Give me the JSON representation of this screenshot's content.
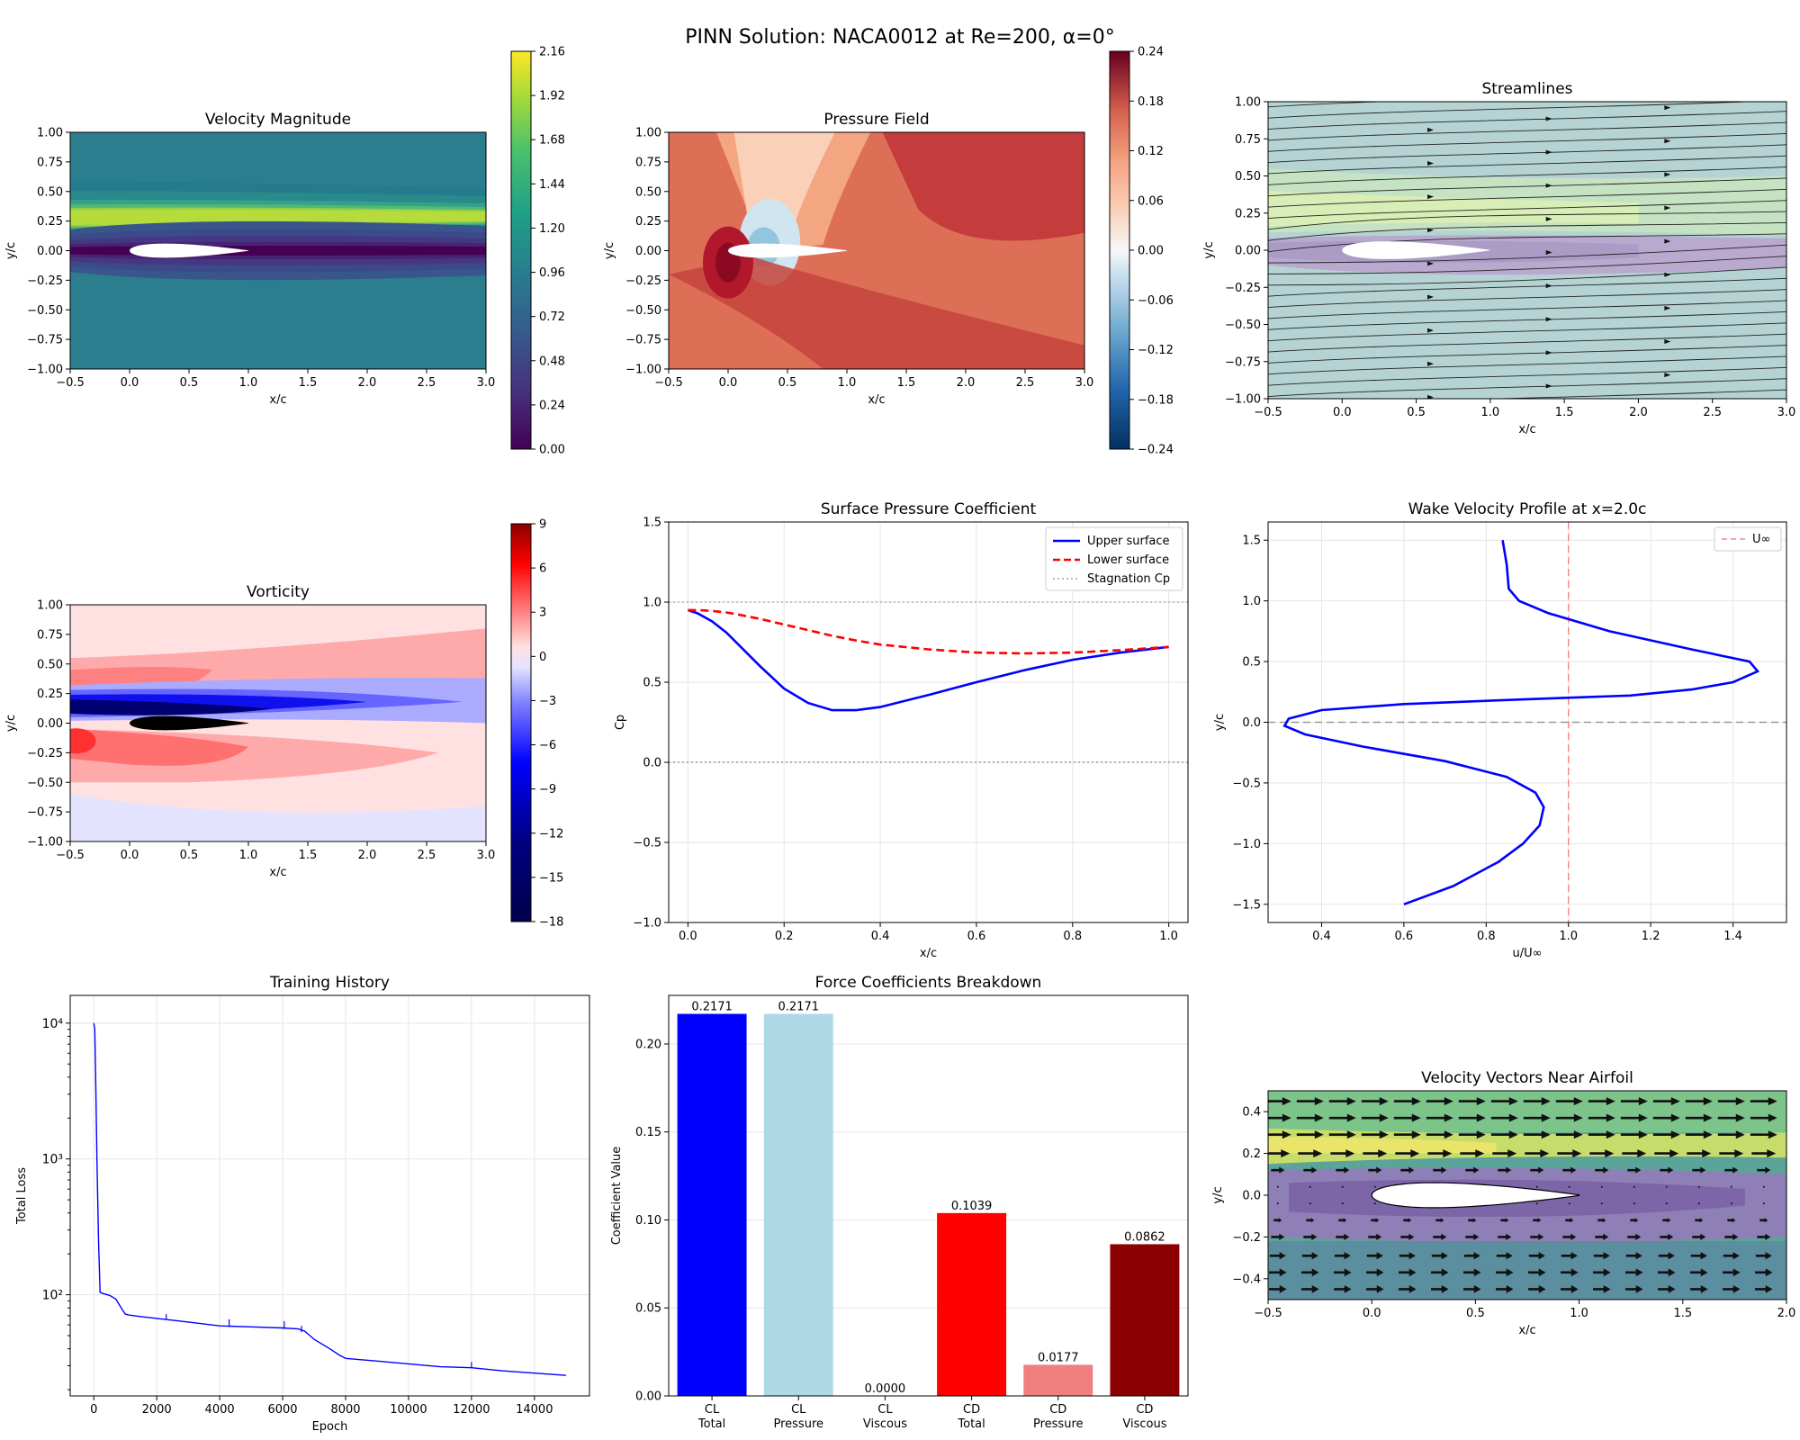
{
  "figure": {
    "title": "PINN Solution: NACA0012 at Re=200, α=0°"
  },
  "colors": {
    "upper": "#0000ff",
    "lower": "#ff0000",
    "stagnation": "#7fb3a3",
    "grid": "#e5e5e5",
    "bar_cl_total": "#0000ff",
    "bar_cl_pressure": "#add8e6",
    "bar_cl_viscous": "#87ceeb",
    "bar_cd_total": "#ff0000",
    "bar_cd_pressure": "#f08080",
    "bar_cd_viscous": "#8b0000",
    "uinf_line": "#ff8080"
  },
  "chart_data": [
    {
      "id": "velocity",
      "type": "heatmap",
      "title": "Velocity Magnitude",
      "xlabel": "x/c",
      "ylabel": "y/c",
      "xlim": [
        -0.5,
        3.0
      ],
      "ylim": [
        -1.0,
        1.0
      ],
      "xticks": [
        "−0.5",
        "0.0",
        "0.5",
        "1.0",
        "1.5",
        "2.0",
        "2.5",
        "3.0"
      ],
      "yticks": [
        "−1.00",
        "−0.75",
        "−0.50",
        "−0.25",
        "0.00",
        "0.25",
        "0.50",
        "0.75",
        "1.00"
      ],
      "colormap": "viridis",
      "colorbar_range": [
        0.0,
        2.16
      ],
      "colorbar_ticks": [
        "0.00",
        "0.24",
        "0.48",
        "0.72",
        "0.96",
        "1.20",
        "1.44",
        "1.68",
        "1.92",
        "2.16"
      ]
    },
    {
      "id": "pressure",
      "type": "heatmap",
      "title": "Pressure Field",
      "xlabel": "x/c",
      "ylabel": "y/c",
      "xlim": [
        -0.5,
        3.0
      ],
      "ylim": [
        -1.0,
        1.0
      ],
      "xticks": [
        "−0.5",
        "0.0",
        "0.5",
        "1.0",
        "1.5",
        "2.0",
        "2.5",
        "3.0"
      ],
      "yticks": [
        "−1.00",
        "−0.75",
        "−0.50",
        "−0.25",
        "0.00",
        "0.25",
        "0.50",
        "0.75",
        "1.00"
      ],
      "colormap": "RdBu_r",
      "colorbar_range": [
        -0.24,
        0.24
      ],
      "colorbar_ticks": [
        "−0.24",
        "−0.18",
        "−0.12",
        "−0.06",
        "0.00",
        "0.06",
        "0.12",
        "0.18",
        "0.24"
      ]
    },
    {
      "id": "streamlines",
      "type": "heatmap",
      "title": "Streamlines",
      "xlabel": "x/c",
      "ylabel": "y/c",
      "xlim": [
        -0.5,
        3.0
      ],
      "ylim": [
        -1.0,
        1.0
      ],
      "xticks": [
        "−0.5",
        "0.0",
        "0.5",
        "1.0",
        "1.5",
        "2.0",
        "2.5",
        "3.0"
      ],
      "yticks": [
        "−1.00",
        "−0.75",
        "−0.50",
        "−0.25",
        "0.00",
        "0.25",
        "0.50",
        "0.75",
        "1.00"
      ]
    },
    {
      "id": "vorticity",
      "type": "heatmap",
      "title": "Vorticity",
      "xlabel": "x/c",
      "ylabel": "y/c",
      "xlim": [
        -0.5,
        3.0
      ],
      "ylim": [
        -1.0,
        1.0
      ],
      "xticks": [
        "−0.5",
        "0.0",
        "0.5",
        "1.0",
        "1.5",
        "2.0",
        "2.5",
        "3.0"
      ],
      "yticks": [
        "−1.00",
        "−0.75",
        "−0.50",
        "−0.25",
        "0.00",
        "0.25",
        "0.50",
        "0.75",
        "1.00"
      ],
      "colormap": "seismic",
      "colorbar_range": [
        -18,
        9
      ],
      "colorbar_ticks": [
        "−18",
        "−15",
        "−12",
        "−9",
        "−6",
        "−3",
        "0",
        "3",
        "6",
        "9"
      ]
    },
    {
      "id": "cp",
      "type": "line",
      "title": "Surface Pressure Coefficient",
      "xlabel": "x/c",
      "ylabel": "Cp",
      "xlim": [
        -0.04,
        1.04
      ],
      "ylim": [
        -1.0,
        1.5
      ],
      "xticks": [
        0.0,
        0.2,
        0.4,
        0.6,
        0.8,
        1.0
      ],
      "yticks": [
        -1.0,
        -0.5,
        0.0,
        0.5,
        1.0,
        1.5
      ],
      "legend": "top-right",
      "x": [
        0.0,
        0.02,
        0.05,
        0.08,
        0.1,
        0.15,
        0.2,
        0.25,
        0.3,
        0.35,
        0.4,
        0.5,
        0.6,
        0.7,
        0.8,
        0.9,
        1.0
      ],
      "series": [
        {
          "name": "Upper surface",
          "style": "solid",
          "values": [
            0.95,
            0.93,
            0.88,
            0.81,
            0.75,
            0.6,
            0.46,
            0.37,
            0.325,
            0.325,
            0.345,
            0.42,
            0.5,
            0.575,
            0.64,
            0.685,
            0.72
          ]
        },
        {
          "name": "Lower surface",
          "style": "dashed",
          "values": [
            0.95,
            0.95,
            0.945,
            0.935,
            0.925,
            0.895,
            0.86,
            0.825,
            0.79,
            0.76,
            0.735,
            0.705,
            0.685,
            0.68,
            0.685,
            0.7,
            0.72
          ]
        }
      ],
      "hlines": [
        {
          "name": "Stagnation Cp",
          "y": 1.0,
          "style": "dotted"
        },
        {
          "y": 0.0,
          "style": "dotted"
        }
      ]
    },
    {
      "id": "wake",
      "type": "line",
      "title": "Wake Velocity Profile at x=2.0c",
      "xlabel": "u/U∞",
      "ylabel": "y/c",
      "xlim": [
        0.27,
        1.53
      ],
      "ylim": [
        -1.65,
        1.65
      ],
      "xticks": [
        0.4,
        0.6,
        0.8,
        1.0,
        1.2,
        1.4
      ],
      "yticks": [
        -1.5,
        -1.0,
        -0.5,
        0.0,
        0.5,
        1.0,
        1.5
      ],
      "legend": "top-right",
      "series": [
        {
          "name": "",
          "u": [
            0.6,
            0.72,
            0.83,
            0.89,
            0.93,
            0.94,
            0.92,
            0.85,
            0.7,
            0.5,
            0.36,
            0.31,
            0.32,
            0.4,
            0.6,
            0.9,
            1.15,
            1.3,
            1.4,
            1.46,
            1.44,
            1.3,
            1.1,
            0.95,
            0.88,
            0.855,
            0.85,
            0.84
          ],
          "y": [
            -1.5,
            -1.35,
            -1.15,
            -1.0,
            -0.85,
            -0.7,
            -0.58,
            -0.45,
            -0.32,
            -0.2,
            -0.1,
            -0.03,
            0.03,
            0.1,
            0.15,
            0.19,
            0.22,
            0.27,
            0.33,
            0.42,
            0.5,
            0.6,
            0.75,
            0.9,
            1.0,
            1.1,
            1.3,
            1.5
          ]
        }
      ],
      "vlines": [
        {
          "name": "U∞",
          "x": 1.0,
          "style": "dashed"
        }
      ],
      "hlines": [
        {
          "y": 0.0,
          "style": "dashed"
        }
      ]
    },
    {
      "id": "training",
      "type": "line",
      "title": "Training History",
      "xlabel": "Epoch",
      "ylabel": "Total Loss",
      "xlim": [
        -750,
        15750
      ],
      "ylim_log": [
        18,
        16000
      ],
      "log_y": true,
      "xticks": [
        0,
        2000,
        4000,
        6000,
        8000,
        10000,
        12000,
        14000
      ],
      "yticks_log": [
        "10²",
        "10³",
        "10⁴"
      ],
      "x": [
        0,
        30,
        60,
        100,
        150,
        200,
        300,
        500,
        700,
        900,
        1000,
        1100,
        1500,
        2000,
        3000,
        4000,
        5000,
        6000,
        6500,
        6700,
        7000,
        7500,
        7800,
        8000,
        9000,
        10000,
        11000,
        12000,
        13000,
        14000,
        15000
      ],
      "values": [
        10000,
        9000,
        4000,
        1000,
        250,
        104,
        102,
        99,
        93,
        78,
        72,
        71,
        69,
        67,
        63,
        59,
        58,
        57,
        56,
        54,
        47,
        40,
        36,
        34,
        32.5,
        31,
        29.5,
        29,
        27.5,
        26.5,
        25.5
      ]
    },
    {
      "id": "forces",
      "type": "bar",
      "title": "Force Coefficients Breakdown",
      "xlabel": "",
      "ylabel": "Coefficient Value",
      "ylim": [
        0,
        0.2276
      ],
      "yticks": [
        0.0,
        0.05,
        0.1,
        0.15,
        0.2
      ],
      "ytick_labels": [
        "0.00",
        "0.05",
        "0.10",
        "0.15",
        "0.20"
      ],
      "categories": [
        [
          "CL",
          "Total"
        ],
        [
          "CL",
          "Pressure"
        ],
        [
          "CL",
          "Viscous"
        ],
        [
          "CD",
          "Total"
        ],
        [
          "CD",
          "Pressure"
        ],
        [
          "CD",
          "Viscous"
        ]
      ],
      "values": [
        0.2171,
        0.2171,
        0.0,
        0.1039,
        0.0177,
        0.0862
      ],
      "value_labels": [
        "0.2171",
        "0.2171",
        "0.0000",
        "0.1039",
        "0.0177",
        "0.0862"
      ]
    },
    {
      "id": "vectors",
      "type": "heatmap",
      "title": "Velocity Vectors Near Airfoil",
      "xlabel": "x/c",
      "ylabel": "y/c",
      "xlim": [
        -0.5,
        2.0
      ],
      "ylim": [
        -0.5,
        0.5
      ],
      "xticks": [
        "−0.5",
        "0.0",
        "0.5",
        "1.0",
        "1.5",
        "2.0"
      ],
      "yticks": [
        "−0.4",
        "−0.2",
        "0.0",
        "0.2",
        "0.4"
      ]
    }
  ]
}
